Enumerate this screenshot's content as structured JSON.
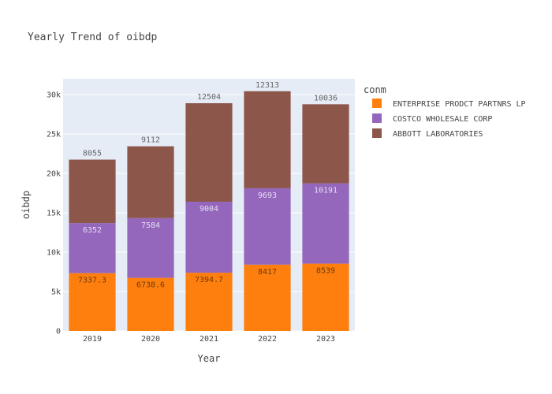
{
  "chart_data": {
    "type": "bar",
    "stacked": true,
    "title": "Yearly Trend of oibdp",
    "xlabel": "Year",
    "ylabel": "oibdp",
    "categories": [
      "2019",
      "2020",
      "2021",
      "2022",
      "2023"
    ],
    "ylim": [
      0,
      32000
    ],
    "yticks": [
      0,
      5000,
      10000,
      15000,
      20000,
      25000,
      30000
    ],
    "ytick_labels": [
      "0",
      "5k",
      "10k",
      "15k",
      "20k",
      "25k",
      "30k"
    ],
    "grid": true,
    "legend_title": "conm",
    "legend_position": "right",
    "series": [
      {
        "name": "ENTERPRISE PRODCT PARTNRS LP",
        "color": "#ff7f0e",
        "label_color": "#6b3a0a",
        "values": [
          7337.3,
          6738.6,
          7394.7,
          8417,
          8539
        ],
        "labels": [
          "7337.3",
          "6738.6",
          "7394.7",
          "8417",
          "8539"
        ]
      },
      {
        "name": "COSTCO WHOLESALE CORP",
        "color": "#9467bd",
        "label_color": "#e8ddf2",
        "values": [
          6352,
          7584,
          9004,
          9693,
          10191
        ],
        "labels": [
          "6352",
          "7584",
          "9004",
          "9693",
          "10191"
        ]
      },
      {
        "name": "ABBOTT LABORATORIES",
        "color": "#8c564b",
        "label_color": "#666666",
        "values": [
          8055,
          9112,
          12504,
          12313,
          10036
        ],
        "labels": [
          "8055",
          "9112",
          "12504",
          "12313",
          "10036"
        ]
      }
    ]
  }
}
